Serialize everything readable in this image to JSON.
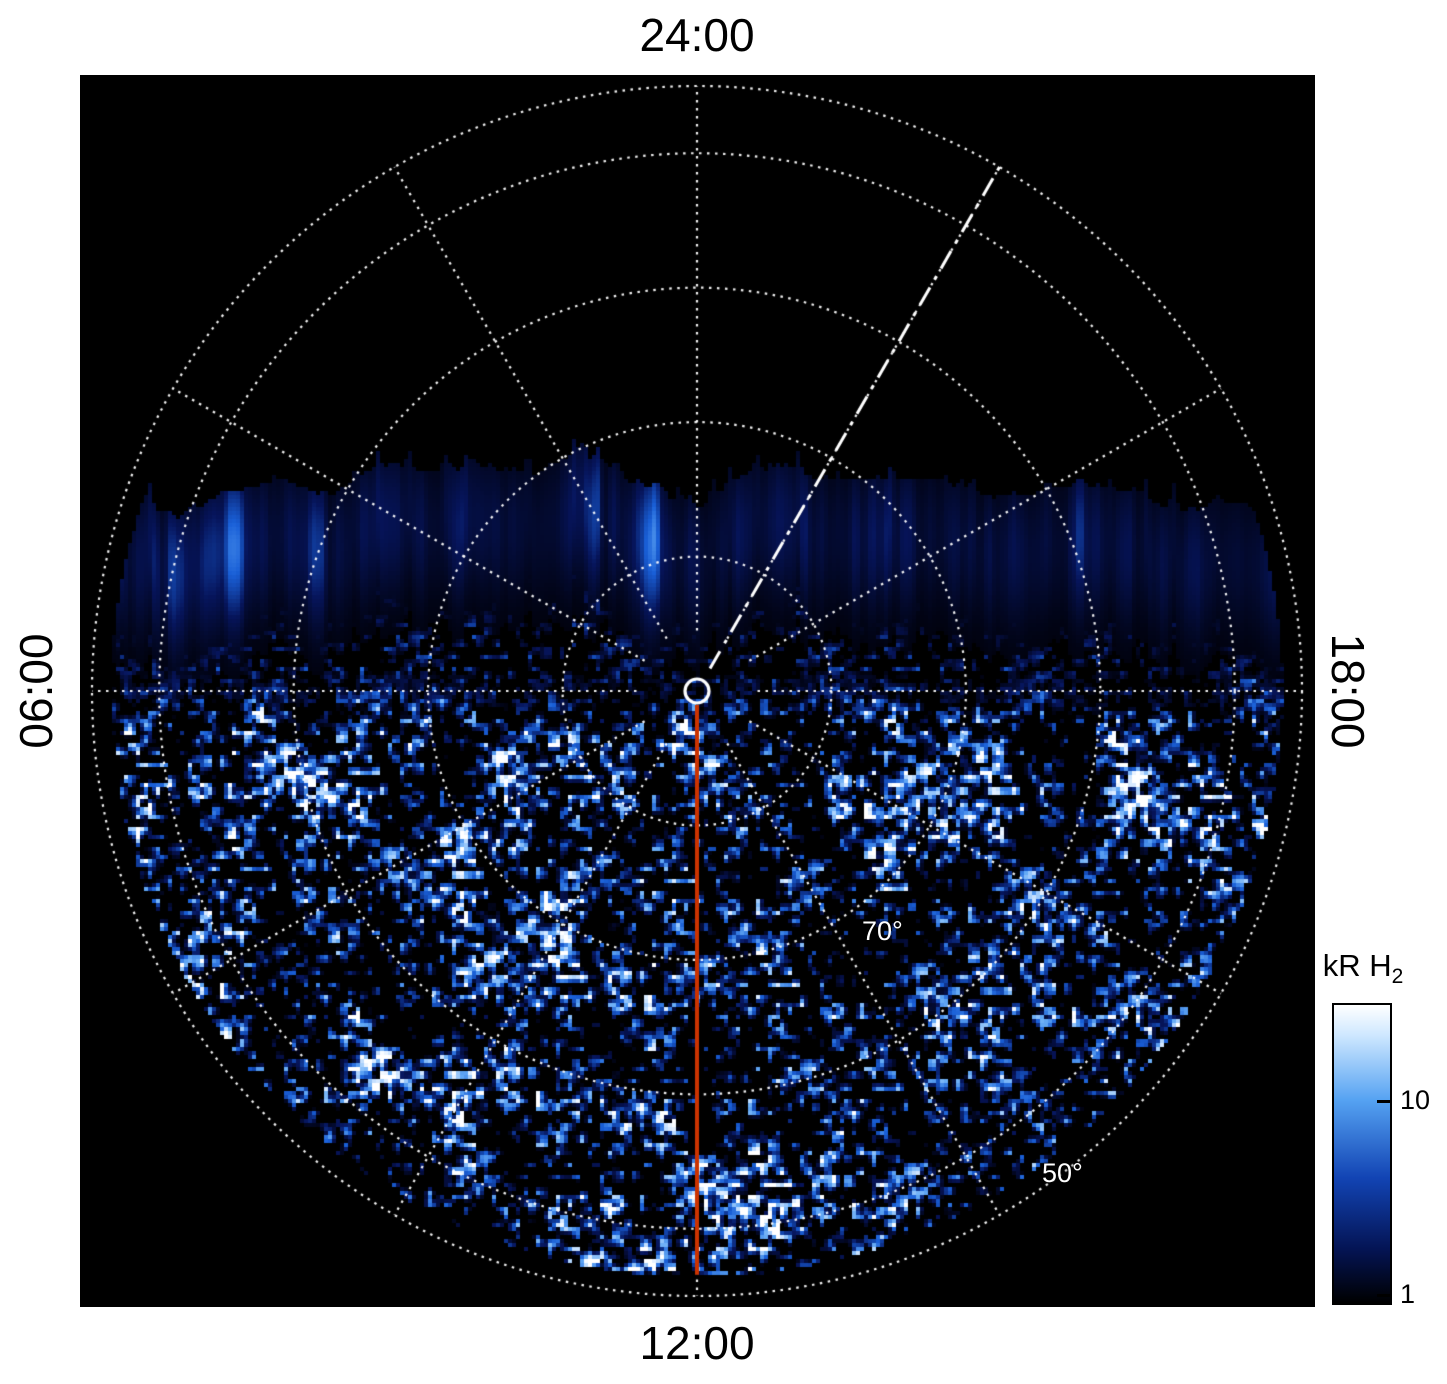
{
  "labels": {
    "top": "24:00",
    "bottom": "12:00",
    "left": "06:00",
    "right": "18:00",
    "lat70": "70°",
    "lat50": "50°"
  },
  "colorbar": {
    "title_main": "kR H",
    "title_sub": "2",
    "tick_labels": [
      "10",
      "1"
    ],
    "gradient": [
      {
        "c": "#ffffff",
        "p": 0
      },
      {
        "c": "#cfe8ff",
        "p": 10
      },
      {
        "c": "#55a2f2",
        "p": 32
      },
      {
        "c": "#1244b4",
        "p": 58
      },
      {
        "c": "#041454",
        "p": 82
      },
      {
        "c": "#000000",
        "p": 100
      }
    ]
  },
  "chart_data": {
    "type": "heatmap",
    "projection": "polar",
    "title": "Polar map of auroral H2 emission in local time coordinates",
    "angular_axis": {
      "unit": "local time",
      "ticks": [
        {
          "label": "24:00",
          "position": "top"
        },
        {
          "label": "06:00",
          "position": "left"
        },
        {
          "label": "12:00",
          "position": "bottom"
        },
        {
          "label": "18:00",
          "position": "right"
        }
      ]
    },
    "radial_axis": {
      "unit": "latitude (deg)",
      "grid_latitudes_deg": [
        80,
        70,
        60,
        50
      ],
      "outer_edge_latitude_deg": 45,
      "labeled_ticks": [
        "70°",
        "50°"
      ]
    },
    "colorbar": {
      "label": "kR H2",
      "scale": "log",
      "tick_values": [
        10,
        1
      ],
      "min": 1,
      "max": 40,
      "heatmap_stops": [
        {
          "t": 0,
          "c": "#000006"
        },
        {
          "t": 0.28,
          "c": "#06145a"
        },
        {
          "t": 0.55,
          "c": "#195fd7"
        },
        {
          "t": 0.75,
          "c": "#64aaf5"
        },
        {
          "t": 0.9,
          "c": "#cde4ff"
        },
        {
          "t": 1,
          "c": "#ffffff"
        }
      ]
    },
    "overlays": {
      "noon_meridian_line": {
        "color": "#cc3300",
        "from": "center",
        "to": "12:00 edge"
      },
      "dash_dot_line": {
        "color": "#ffffff",
        "angle_deg_from_midnight_toward_dusk": 30
      },
      "center_marker": "white circle outline at pole",
      "grid_style": "white dotted latitude circles and 2-hour local-time spokes"
    },
    "features": [
      "black unobserved sector covering the poleward/midnight (top) portion of the map",
      "bright vertically-striated auroral emission band between ~55° and 75° latitude spanning the dawn-dusk sector, with saturated white patches near 06:00-09:00 and 15:00-18:00",
      "speckled low-level H2 emission (~1-10 kR) filling the dayside (12:00) half of the map down to the outer edge"
    ]
  }
}
